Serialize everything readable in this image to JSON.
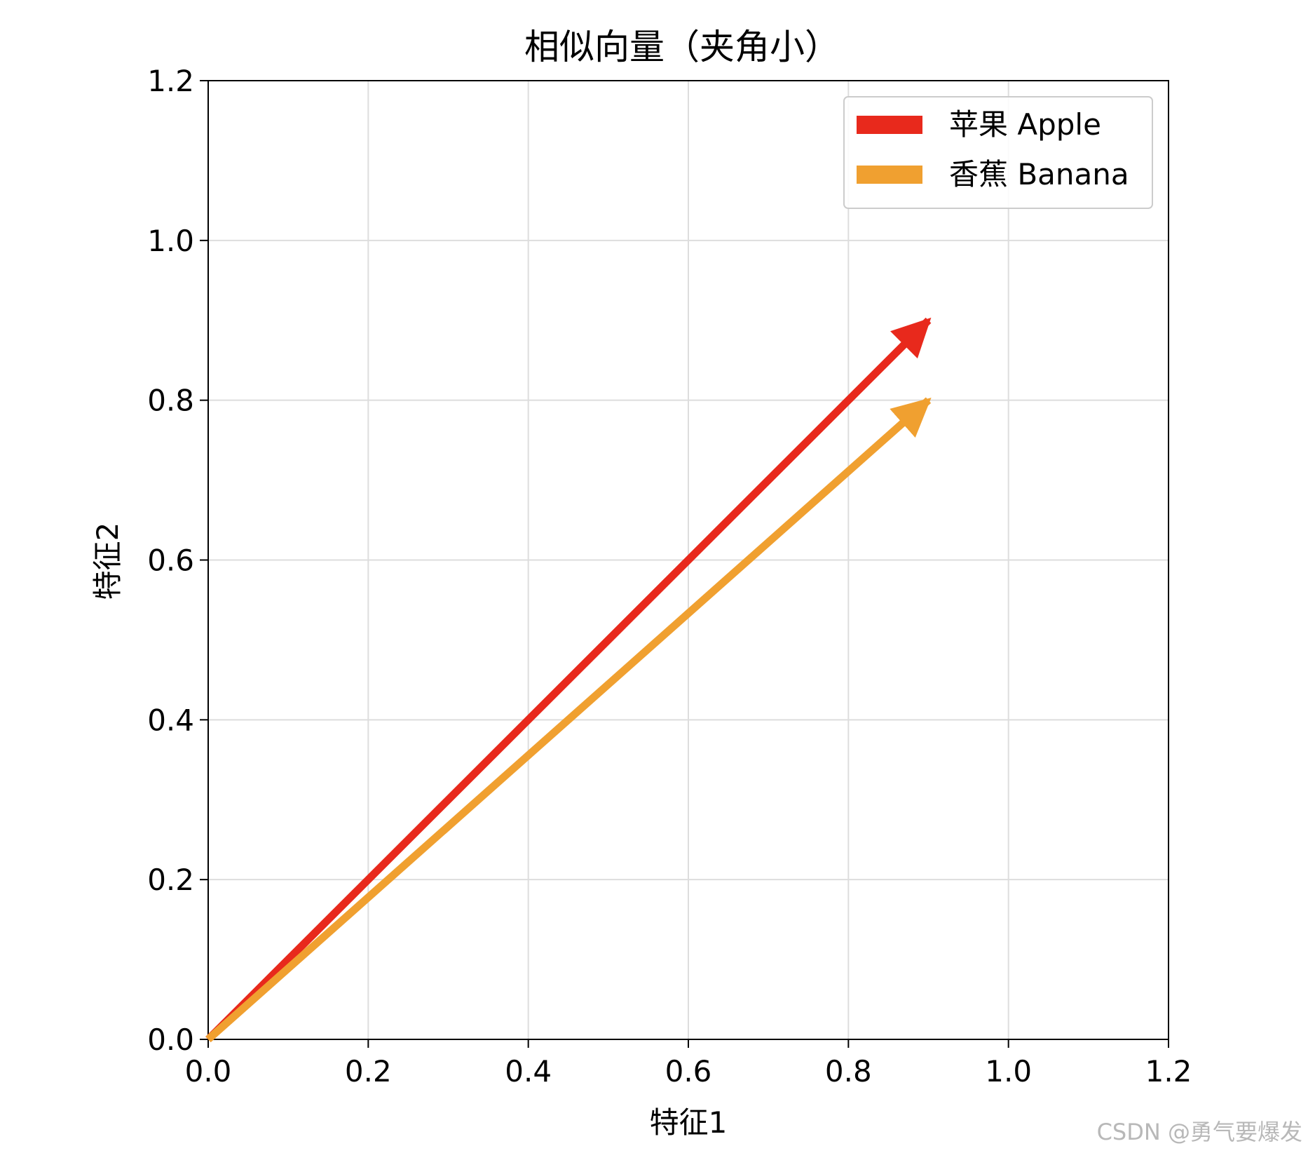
{
  "chart_data": {
    "type": "quiver",
    "title": "相似向量（夹角小）",
    "xlabel": "特征1",
    "ylabel": "特征2",
    "xlim": [
      0,
      1.2
    ],
    "ylim": [
      0,
      1.2
    ],
    "xticks": [
      "0.0",
      "0.2",
      "0.4",
      "0.6",
      "0.8",
      "1.0",
      "1.2"
    ],
    "yticks": [
      "0.0",
      "0.2",
      "0.4",
      "0.6",
      "0.8",
      "1.0",
      "1.2"
    ],
    "grid": true,
    "legend_position": "upper right",
    "series": [
      {
        "name": "苹果 Apple",
        "color": "#e8291c",
        "from": [
          0,
          0
        ],
        "to": [
          0.9,
          0.9
        ]
      },
      {
        "name": "香蕉 Banana",
        "color": "#f0a030",
        "from": [
          0,
          0
        ],
        "to": [
          0.9,
          0.8
        ]
      }
    ]
  },
  "watermark": "CSDN @勇气要爆发"
}
